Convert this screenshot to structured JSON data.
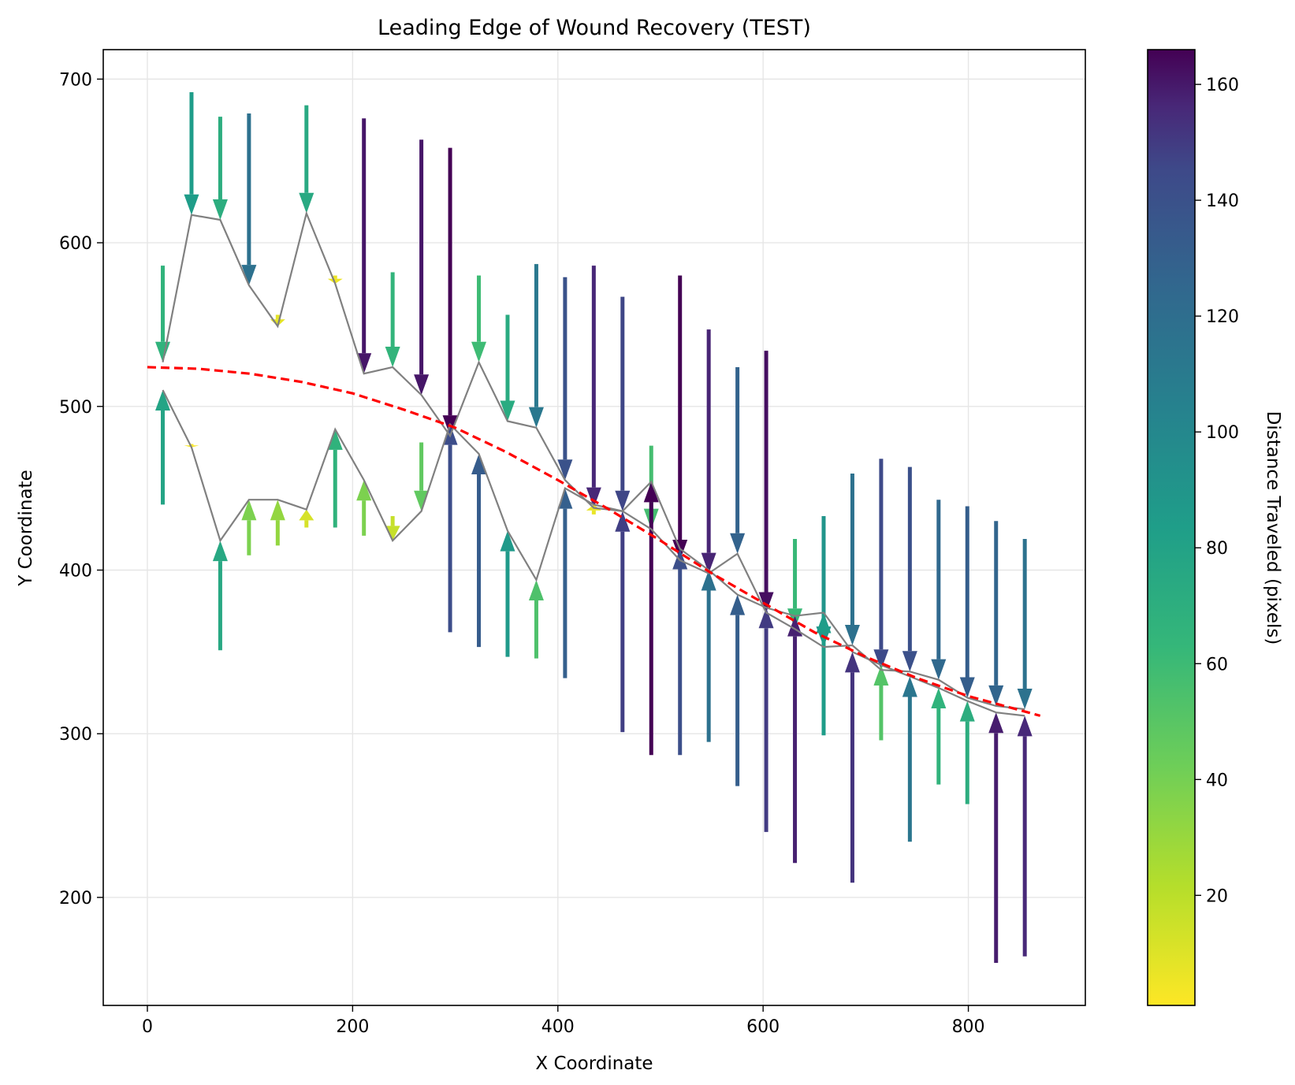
{
  "chart_data": {
    "type": "quiver",
    "title": "Leading Edge of Wound Recovery (TEST)",
    "xlabel": "X Coordinate",
    "ylabel": "Y Coordinate",
    "xlim": [
      -43,
      914
    ],
    "ylim": [
      134,
      718
    ],
    "xticks": [
      0,
      200,
      400,
      600,
      800
    ],
    "yticks": [
      200,
      300,
      400,
      500,
      600,
      700
    ],
    "grid": true,
    "colorbar": {
      "label": "Distance Traveled (pixels)",
      "range": [
        1,
        166
      ],
      "ticks": [
        20,
        40,
        60,
        80,
        100,
        120,
        140,
        160
      ],
      "colormap": "viridis_r"
    },
    "x_positions": [
      15,
      43,
      71,
      99,
      127,
      155,
      183,
      211,
      239,
      267,
      295,
      323,
      351,
      379,
      407,
      435,
      463,
      491,
      519,
      547,
      575,
      603,
      631,
      659,
      687,
      715,
      743,
      771,
      799,
      827,
      855
    ],
    "top_edge": [
      527,
      617,
      614,
      574,
      549,
      618,
      575,
      520,
      524,
      507,
      482,
      527,
      491,
      487,
      455,
      438,
      436,
      425,
      406,
      398,
      410,
      374,
      364,
      353,
      354,
      339,
      338,
      333,
      322,
      317,
      315
    ],
    "bottom_edge": [
      510,
      475,
      418,
      443,
      443,
      437,
      486,
      455,
      418,
      436,
      489,
      471,
      424,
      394,
      450,
      440,
      436,
      454,
      413,
      400,
      385,
      377,
      372,
      374,
      350,
      342,
      335,
      328,
      320,
      313,
      311
    ],
    "top_arrows_start": [
      586,
      692,
      677,
      679,
      556,
      684,
      580,
      676,
      582,
      663,
      658,
      580,
      556,
      587,
      579,
      586,
      567,
      476,
      580,
      547,
      524,
      534,
      419,
      433,
      459,
      468,
      463,
      443,
      439,
      430,
      419
    ],
    "bottom_arrows_start": [
      440,
      477,
      351,
      409,
      415,
      426,
      426,
      421,
      433,
      478,
      362,
      353,
      347,
      346,
      334,
      434,
      301,
      287,
      287,
      295,
      268,
      240,
      221,
      299,
      209,
      296,
      234,
      269,
      257,
      160,
      164
    ],
    "fit_line": {
      "color": "#ff0000",
      "style": "dashed",
      "x": [
        0,
        50,
        100,
        150,
        200,
        250,
        300,
        350,
        400,
        450,
        500,
        550,
        600,
        650,
        700,
        750,
        800,
        870
      ],
      "y": [
        524,
        523,
        520,
        515,
        508,
        498,
        487,
        472,
        455,
        437,
        418,
        398,
        380,
        362,
        347,
        334,
        323,
        311
      ]
    },
    "edge_line_color": "#808080"
  }
}
